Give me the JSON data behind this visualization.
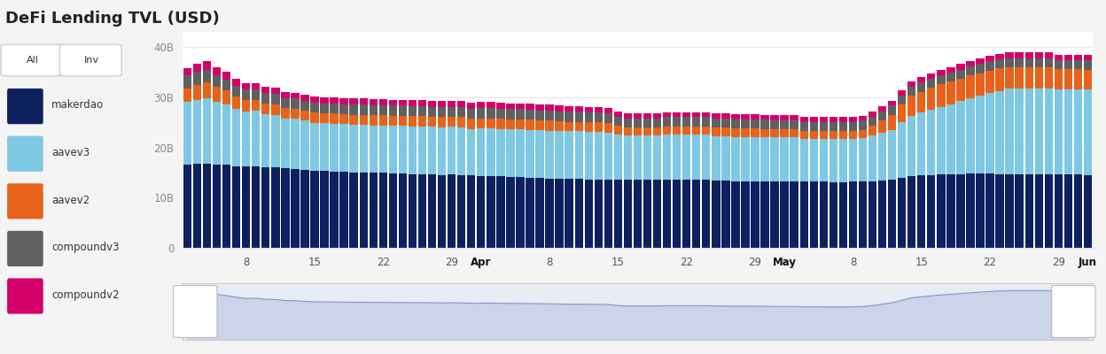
{
  "title": "DeFi Lending TVL (USD)",
  "title_fontsize": 13,
  "bg_color": "#f4f4f4",
  "plot_bg_color": "#ffffff",
  "legend_labels": [
    "makerdao",
    "aavev3",
    "aavev2",
    "compoundv3",
    "compoundv2"
  ],
  "legend_colors": [
    "#0d2060",
    "#7ec8e3",
    "#e8621a",
    "#606060",
    "#d4006a"
  ],
  "x_tick_labels": [
    "8",
    "15",
    "22",
    "29",
    "Apr",
    "8",
    "15",
    "22",
    "29",
    "May",
    "8",
    "15",
    "22",
    "29",
    "Jun"
  ],
  "x_tick_positions": [
    6,
    13,
    20,
    27,
    30,
    37,
    44,
    51,
    58,
    61,
    68,
    75,
    82,
    89,
    92
  ],
  "ytick_labels": [
    "0",
    "10B",
    "20B",
    "30B",
    "40B"
  ],
  "ytick_values": [
    0,
    10,
    20,
    30,
    40
  ],
  "ylim": [
    0,
    43
  ],
  "n_bars": 93,
  "makerdao": [
    16.5,
    16.7,
    16.8,
    16.5,
    16.5,
    16.2,
    16.2,
    16.3,
    16.1,
    16.0,
    15.8,
    15.7,
    15.5,
    15.4,
    15.3,
    15.2,
    15.1,
    15.0,
    15.0,
    14.9,
    14.9,
    14.8,
    14.8,
    14.7,
    14.7,
    14.6,
    14.5,
    14.6,
    14.5,
    14.4,
    14.3,
    14.3,
    14.2,
    14.1,
    14.1,
    14.0,
    13.9,
    13.8,
    13.8,
    13.7,
    13.7,
    13.6,
    13.6,
    13.6,
    13.5,
    13.5,
    13.5,
    13.5,
    13.5,
    13.5,
    13.5,
    13.5,
    13.5,
    13.5,
    13.4,
    13.4,
    13.3,
    13.3,
    13.3,
    13.3,
    13.2,
    13.2,
    13.2,
    13.2,
    13.2,
    13.2,
    13.1,
    13.1,
    13.2,
    13.3,
    13.3,
    13.4,
    13.5,
    14.0,
    14.3,
    14.4,
    14.5,
    14.6,
    14.6,
    14.7,
    14.8,
    14.8,
    14.8,
    14.7,
    14.7,
    14.7,
    14.7,
    14.7,
    14.7,
    14.6,
    14.6,
    14.6,
    14.5
  ],
  "aavev3": [
    12.5,
    12.8,
    13.0,
    12.5,
    12.0,
    11.5,
    11.0,
    11.0,
    10.5,
    10.5,
    10.0,
    10.0,
    9.8,
    9.5,
    9.5,
    9.5,
    9.5,
    9.5,
    9.5,
    9.5,
    9.5,
    9.5,
    9.5,
    9.5,
    9.5,
    9.5,
    9.5,
    9.5,
    9.5,
    9.3,
    9.5,
    9.5,
    9.5,
    9.5,
    9.5,
    9.5,
    9.5,
    9.5,
    9.5,
    9.5,
    9.5,
    9.5,
    9.5,
    9.3,
    9.0,
    8.8,
    8.8,
    8.8,
    8.8,
    9.0,
    9.0,
    9.0,
    9.0,
    9.0,
    8.8,
    8.8,
    8.8,
    8.8,
    8.8,
    8.8,
    8.8,
    8.8,
    8.8,
    8.5,
    8.5,
    8.5,
    8.5,
    8.5,
    8.5,
    8.5,
    9.0,
    9.5,
    10.0,
    11.0,
    12.0,
    12.5,
    13.0,
    13.5,
    14.0,
    14.5,
    15.0,
    15.5,
    16.0,
    16.5,
    17.0,
    17.0,
    17.0,
    17.0,
    17.0,
    17.0,
    17.0,
    17.0,
    17.0
  ],
  "aavev2": [
    2.8,
    3.0,
    3.2,
    3.0,
    2.8,
    2.5,
    2.3,
    2.2,
    2.2,
    2.1,
    2.0,
    2.0,
    2.0,
    2.0,
    2.0,
    2.0,
    2.0,
    2.0,
    2.0,
    2.0,
    2.0,
    2.0,
    2.0,
    2.0,
    2.0,
    2.0,
    2.0,
    2.0,
    2.0,
    2.0,
    2.0,
    2.0,
    2.0,
    2.0,
    2.0,
    2.0,
    2.0,
    2.0,
    1.9,
    1.9,
    1.9,
    1.9,
    1.9,
    1.9,
    1.8,
    1.7,
    1.7,
    1.7,
    1.7,
    1.7,
    1.7,
    1.7,
    1.7,
    1.7,
    1.7,
    1.7,
    1.7,
    1.7,
    1.7,
    1.6,
    1.6,
    1.6,
    1.6,
    1.6,
    1.6,
    1.6,
    1.6,
    1.6,
    1.6,
    1.7,
    2.0,
    2.5,
    3.0,
    3.5,
    4.0,
    4.2,
    4.4,
    4.5,
    4.5,
    4.5,
    4.5,
    4.5,
    4.5,
    4.5,
    4.3,
    4.3,
    4.3,
    4.3,
    4.3,
    4.0,
    4.0,
    4.0,
    4.0
  ],
  "compoundv3": [
    2.5,
    2.5,
    2.5,
    2.3,
    2.2,
    2.0,
    2.0,
    2.0,
    2.0,
    2.0,
    2.0,
    2.0,
    2.0,
    2.0,
    2.0,
    2.0,
    2.0,
    2.0,
    2.0,
    2.0,
    2.0,
    2.0,
    2.0,
    2.0,
    2.0,
    2.0,
    2.0,
    2.0,
    2.0,
    2.0,
    2.0,
    2.0,
    2.0,
    2.0,
    2.0,
    2.0,
    2.0,
    2.0,
    2.0,
    2.0,
    2.0,
    2.0,
    2.0,
    2.0,
    1.8,
    1.8,
    1.8,
    1.8,
    1.8,
    1.8,
    1.8,
    1.8,
    1.8,
    1.8,
    1.8,
    1.8,
    1.8,
    1.8,
    1.8,
    1.8,
    1.8,
    1.8,
    1.8,
    1.8,
    1.8,
    1.8,
    1.8,
    1.8,
    1.8,
    1.8,
    1.8,
    1.8,
    1.8,
    1.8,
    1.8,
    1.8,
    1.8,
    1.8,
    1.8,
    1.8,
    1.8,
    1.8,
    1.8,
    1.8,
    1.8,
    1.8,
    1.8,
    1.8,
    1.8,
    1.8,
    1.8,
    1.8,
    1.8
  ],
  "compoundv2": [
    1.5,
    1.6,
    1.7,
    1.6,
    1.5,
    1.4,
    1.3,
    1.3,
    1.3,
    1.3,
    1.3,
    1.2,
    1.2,
    1.2,
    1.2,
    1.2,
    1.2,
    1.2,
    1.2,
    1.2,
    1.2,
    1.2,
    1.2,
    1.2,
    1.2,
    1.2,
    1.2,
    1.2,
    1.2,
    1.2,
    1.2,
    1.2,
    1.2,
    1.2,
    1.2,
    1.2,
    1.2,
    1.2,
    1.1,
    1.1,
    1.1,
    1.1,
    1.1,
    1.1,
    1.0,
    1.0,
    1.0,
    1.0,
    1.0,
    1.0,
    1.0,
    1.0,
    1.0,
    1.0,
    1.0,
    1.0,
    1.0,
    1.0,
    1.0,
    1.0,
    1.0,
    1.0,
    1.0,
    1.0,
    1.0,
    1.0,
    1.0,
    1.0,
    1.0,
    1.0,
    1.0,
    1.0,
    1.0,
    1.0,
    1.1,
    1.1,
    1.1,
    1.1,
    1.1,
    1.1,
    1.1,
    1.1,
    1.1,
    1.1,
    1.1,
    1.1,
    1.1,
    1.1,
    1.1,
    1.1,
    1.1,
    1.1,
    1.1
  ],
  "minimap_color": "#b8c4e0",
  "minimap_bg": "#e8ecf5",
  "minimap_line_color": "#8898c8"
}
